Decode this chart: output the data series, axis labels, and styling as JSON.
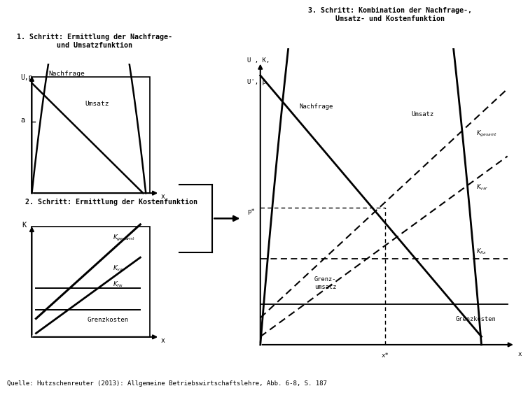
{
  "title1": "1. Schritt: Ermittlung der Nachfrage-\nund Umsatzfunktion",
  "title2": "2. Schritt: Ermittlung der Kostenfunktion",
  "title3": "3. Schritt: Kombination der Nachfrage-,\nUmsatz- und Kostenfunktion",
  "source": "Quelle: Hutzschenreuter (2013): Allgemeine Betriebswirtschaftslehre, Abb. 6-8, S. 187",
  "bg_color": "#ffffff",
  "font_family": "DejaVu Sans"
}
